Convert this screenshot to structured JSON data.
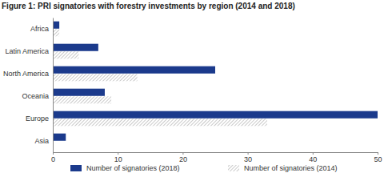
{
  "chart_data": {
    "type": "bar",
    "orientation": "horizontal",
    "title": "Figure 1: PRI signatories with forestry investments by region (2014 and 2018)",
    "categories": [
      "Africa",
      "Latin America",
      "North America",
      "Oceania",
      "Europe",
      "Asia"
    ],
    "series": [
      {
        "name": "Number of signatories (2018)",
        "color": "#1b3a8c",
        "values": [
          1,
          7,
          25,
          8,
          50,
          2
        ]
      },
      {
        "name": "Number of signatories (2014)",
        "color": "#b8b8b8",
        "values": [
          1,
          4,
          13,
          9,
          33,
          0
        ]
      }
    ],
    "xlim": [
      0,
      50
    ],
    "xticks": [
      0,
      10,
      20,
      30,
      40,
      50
    ],
    "grid": false,
    "legend": "bottom"
  }
}
